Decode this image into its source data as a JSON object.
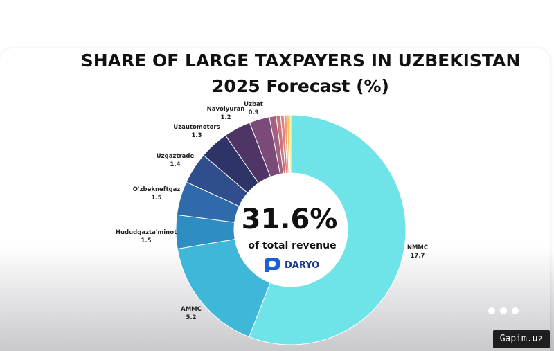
{
  "title_line1": "SHARE OF LARGE TAXPAYERS IN UZBEKISTAN",
  "title_line2": "2025 Forecast (%)",
  "watermark": "Gapim.uz",
  "chart_data": {
    "type": "pie",
    "variant": "donut",
    "title": "SHARE OF LARGE TAXPAYERS IN UZBEKISTAN",
    "subtitle": "2025 Forecast (%)",
    "center_value": "31.6%",
    "center_label": "of total revenue",
    "center_logo_text": "DARYO",
    "total_percent_of_revenue": 31.6,
    "slices": [
      {
        "label": "NMMC",
        "value": 17.7,
        "value_text": "17.7",
        "color": "#6ee4e8",
        "labeled": true
      },
      {
        "label": "AMMC",
        "value": 5.2,
        "value_text": "5.2",
        "color": "#3fb7d9",
        "labeled": true
      },
      {
        "label": "Hududgazta'minot",
        "value": 1.5,
        "value_text": "1.5",
        "color": "#2e8ec2",
        "labeled": true
      },
      {
        "label": "O'zbekneftgaz",
        "value": 1.5,
        "value_text": "1.5",
        "color": "#2f6aaa",
        "labeled": true
      },
      {
        "label": "Uzgaztrade",
        "value": 1.4,
        "value_text": "1.4",
        "color": "#2f4e8b",
        "labeled": true
      },
      {
        "label": "Uzautomotors",
        "value": 1.3,
        "value_text": "1.3",
        "color": "#2e3468",
        "labeled": true
      },
      {
        "label": "Navoiyuran",
        "value": 1.2,
        "value_text": "1.2",
        "color": "#4e3566",
        "labeled": true
      },
      {
        "label": "Uzbat",
        "value": 0.9,
        "value_text": "0.9",
        "color": "#7a4a78",
        "labeled": true
      },
      {
        "label": "",
        "value": 0.3,
        "value_text": "",
        "color": "#a3607f",
        "labeled": false
      },
      {
        "label": "",
        "value": 0.2,
        "value_text": "",
        "color": "#c9727e",
        "labeled": false
      },
      {
        "label": "",
        "value": 0.15,
        "value_text": "",
        "color": "#e27f7a",
        "labeled": false
      },
      {
        "label": "",
        "value": 0.12,
        "value_text": "",
        "color": "#f29a6e",
        "labeled": false
      },
      {
        "label": "",
        "value": 0.1,
        "value_text": "",
        "color": "#f6c45b",
        "labeled": false
      },
      {
        "label": "",
        "value": 0.08,
        "value_text": "",
        "color": "#f3e35a",
        "labeled": false
      }
    ],
    "legend": "none"
  }
}
